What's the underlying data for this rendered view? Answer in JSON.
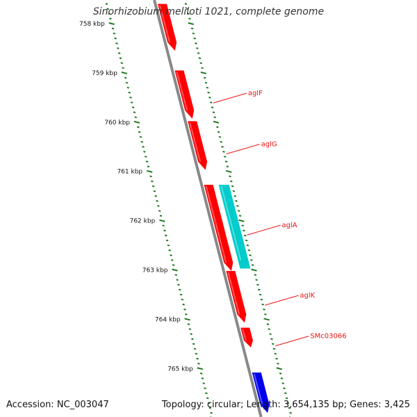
{
  "title": "Sinorhizobium meliloti 1021, complete genome",
  "footer": {
    "accession": "Accession: NC_003047",
    "summary": "Topology: circular; Length: 3,654,135 bp; Genes: 3,425"
  },
  "colors": {
    "backbone": "#888888",
    "ticks": "#1f7a1f",
    "tick_label": "#111111",
    "gene_label": "#ee1111"
  },
  "ruler": {
    "unit": "kbp",
    "ticks": [
      {
        "label": "758 kbp",
        "pos": 758
      },
      {
        "label": "759 kbp",
        "pos": 759
      },
      {
        "label": "760 kbp",
        "pos": 760
      },
      {
        "label": "761 kbp",
        "pos": 761
      },
      {
        "label": "762 kbp",
        "pos": 762
      },
      {
        "label": "763 kbp",
        "pos": 763
      },
      {
        "label": "764 kbp",
        "pos": 764
      },
      {
        "label": "765 kbp",
        "pos": 765
      }
    ]
  },
  "genes": [
    {
      "name": "",
      "start": 757.6,
      "end": 758.55,
      "strand": "inner",
      "color": "#ff0000"
    },
    {
      "name": "aglF",
      "start": 758.95,
      "end": 759.93,
      "strand": "inner",
      "color": "#ff0000"
    },
    {
      "name": "aglG",
      "start": 759.98,
      "end": 760.97,
      "strand": "inner",
      "color": "#ff0000"
    },
    {
      "name": "aglA",
      "start": 761.27,
      "end": 762.97,
      "strand": "outer",
      "color": "#00cccc"
    },
    {
      "name": "",
      "start": 761.27,
      "end": 763.02,
      "strand": "inner",
      "color": "#ff0000"
    },
    {
      "name": "aglK",
      "start": 763.02,
      "end": 764.07,
      "strand": "inner",
      "color": "#ff0000"
    },
    {
      "name": "SMc03066",
      "start": 764.17,
      "end": 764.57,
      "strand": "inner",
      "color": "#ff0000"
    },
    {
      "name": "",
      "start": 765.08,
      "end": 765.9,
      "strand": "inner",
      "color": "#0000ee"
    }
  ]
}
